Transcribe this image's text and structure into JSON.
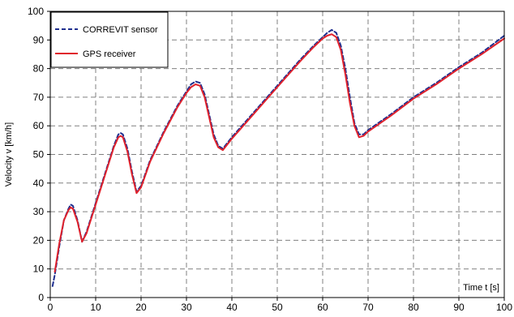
{
  "chart_data": {
    "type": "line",
    "title": "",
    "xlabel": "Time t [s]",
    "ylabel": "Velocity v [km/h]",
    "xlim": [
      0,
      100
    ],
    "ylim": [
      0,
      100
    ],
    "x_ticks": [
      0,
      10,
      20,
      30,
      40,
      50,
      60,
      70,
      80,
      90,
      100
    ],
    "y_ticks": [
      0,
      10,
      20,
      30,
      40,
      50,
      60,
      70,
      80,
      90,
      100
    ],
    "grid": true,
    "legend_position": "top-left",
    "series": [
      {
        "name": "CORREVIT sensor",
        "color": "#1f2f8f",
        "style": "dashed",
        "x": [
          0.5,
          1,
          2,
          3,
          4,
          4.5,
          5,
          6,
          7,
          8,
          10,
          12,
          14,
          15,
          15.5,
          16,
          17,
          18,
          19,
          20,
          22,
          25,
          28,
          30,
          31,
          32,
          33,
          34,
          35,
          36,
          37,
          38,
          40,
          45,
          50,
          55,
          58,
          60,
          61,
          62,
          63,
          64,
          65,
          66,
          67,
          68,
          69,
          70,
          75,
          80,
          85,
          90,
          95,
          100
        ],
        "y": [
          4,
          8,
          18,
          27,
          31,
          32.5,
          32,
          27,
          19.5,
          23,
          33,
          43,
          53,
          57,
          57.5,
          57,
          52,
          44,
          37,
          39,
          48,
          58,
          67,
          72,
          74.5,
          75.5,
          75,
          71,
          64,
          57,
          53,
          52,
          56,
          65,
          74,
          83,
          88,
          91,
          92.5,
          93.5,
          92.5,
          88,
          80,
          70,
          61,
          57,
          57,
          58.5,
          64,
          70,
          75,
          80.5,
          85.5,
          91.5
        ]
      },
      {
        "name": "GPS receiver",
        "color": "#e0222c",
        "style": "solid",
        "x": [
          1,
          2,
          3,
          4,
          4.5,
          5,
          6,
          7,
          8,
          10,
          12,
          14,
          15,
          15.5,
          16,
          17,
          18,
          19,
          20,
          22,
          25,
          28,
          30,
          31,
          32,
          33,
          34,
          35,
          36,
          37,
          38,
          40,
          45,
          50,
          55,
          58,
          60,
          61,
          62,
          63,
          64,
          65,
          66,
          67,
          68,
          69,
          70,
          75,
          80,
          85,
          90,
          95,
          100
        ],
        "y": [
          9,
          19,
          27,
          30.5,
          31.5,
          31,
          26.5,
          19.5,
          22.5,
          32.5,
          42.5,
          52.5,
          56,
          56.5,
          56,
          51,
          43,
          36.5,
          38.5,
          47.5,
          57.5,
          66.5,
          71.5,
          73.5,
          74.5,
          74,
          70,
          63,
          56,
          52.5,
          51.5,
          55.5,
          64.5,
          73.5,
          82.5,
          87.5,
          90.5,
          91.5,
          92,
          91,
          86.5,
          78,
          68,
          60,
          56,
          56.5,
          58,
          63.5,
          69.5,
          74.5,
          80,
          85,
          90.5
        ]
      }
    ]
  }
}
